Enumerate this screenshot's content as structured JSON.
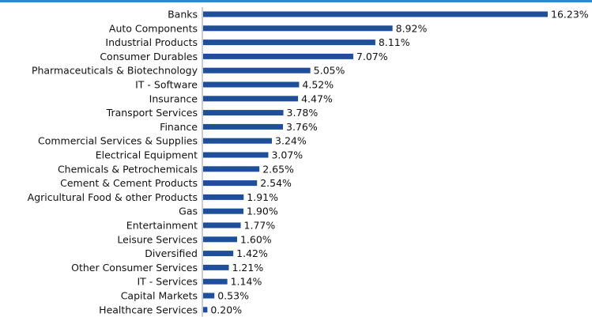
{
  "colors": {
    "bar": "#1f4e9a",
    "axis": "#999999",
    "top_rule": "#2f86c8"
  },
  "chart_data": {
    "type": "bar",
    "orientation": "horizontal",
    "title": "",
    "xlabel": "",
    "ylabel": "",
    "grid": false,
    "legend": "none",
    "xlim": [
      0,
      16.23
    ],
    "categories": [
      "Banks",
      "Auto Components",
      "Industrial Products",
      "Consumer Durables",
      "Pharmaceuticals & Biotechnology",
      "IT - Software",
      "Insurance",
      "Transport Services",
      "Finance",
      "Commercial Services & Supplies",
      "Electrical Equipment",
      "Chemicals & Petrochemicals",
      "Cement & Cement Products",
      "Agricultural Food & other Products",
      "Gas",
      "Entertainment",
      "Leisure Services",
      "Diversified",
      "Other Consumer Services",
      "IT - Services",
      "Capital Markets",
      "Healthcare Services"
    ],
    "values": [
      16.23,
      8.92,
      8.11,
      7.07,
      5.05,
      4.52,
      4.47,
      3.78,
      3.76,
      3.24,
      3.07,
      2.65,
      2.54,
      1.91,
      1.9,
      1.77,
      1.6,
      1.42,
      1.21,
      1.14,
      0.53,
      0.2
    ],
    "value_labels": [
      "16.23%",
      "8.92%",
      "8.11%",
      "7.07%",
      "5.05%",
      "4.52%",
      "4.47%",
      "3.78%",
      "3.76%",
      "3.24%",
      "3.07%",
      "2.65%",
      "2.54%",
      "1.91%",
      "1.90%",
      "1.77%",
      "1.60%",
      "1.42%",
      "1.21%",
      "1.14%",
      "0.53%",
      "0.20%"
    ]
  }
}
